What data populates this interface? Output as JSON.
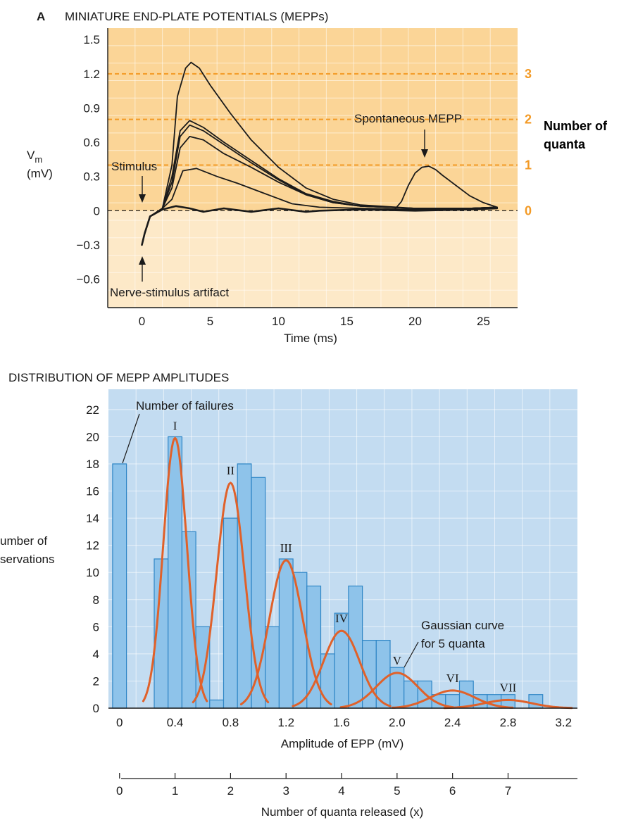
{
  "panel_a_label": "A",
  "colors": {
    "panel_a_bg_top": "#fbd597",
    "panel_a_bg_bottom": "#fde9c8",
    "quanta_orange": "#f39a25",
    "panel_b_bg": "#c3dcf1",
    "bar_fill": "#8ec3ea",
    "bar_stroke": "#2f86c6",
    "gaussian": "#e0612a",
    "trace": "#1a1a1a"
  },
  "chart_data": [
    {
      "id": "mepp_traces",
      "type": "line",
      "title": "MINIATURE END-PLATE POTENTIALS (MEPPs)",
      "xlabel": "Time (ms)",
      "ylabel": "V",
      "ylabel_subscript": "m",
      "ylabel_unit": "(mV)",
      "xlim": [
        -2.5,
        27.5
      ],
      "ylim": [
        -0.85,
        1.6
      ],
      "xticks": [
        0,
        5,
        10,
        15,
        20,
        25
      ],
      "yticks": [
        1.5,
        1.2,
        0.9,
        0.6,
        0.3,
        0,
        -0.3,
        -0.6
      ],
      "ytick_labels": [
        "1.5",
        "1.2",
        "0.9",
        "0.6",
        "0.3",
        "0",
        "−0.3",
        "−0.6"
      ],
      "quanta_axis": {
        "title_lines": [
          "Number of",
          "quanta"
        ],
        "levels": [
          {
            "label": "3",
            "mv": 1.2
          },
          {
            "label": "2",
            "mv": 0.8
          },
          {
            "label": "1",
            "mv": 0.4
          },
          {
            "label": "0",
            "mv": 0
          }
        ]
      },
      "annotations": {
        "stimulus": "Stimulus",
        "artifact": "Nerve-stimulus artifact",
        "spontaneous": "Spontaneous MEPP"
      },
      "series": [
        {
          "x": [
            0,
            0.2,
            0.6,
            1.5,
            2.5,
            3.5,
            4.5,
            6,
            8,
            10,
            12,
            13,
            16,
            20,
            24,
            26
          ],
          "y": [
            -0.3,
            -0.2,
            -0.05,
            0.01,
            0.04,
            0.02,
            -0.01,
            0.02,
            -0.01,
            0.02,
            -0.01,
            0.0,
            0.01,
            0.0,
            0.01,
            0.02
          ]
        },
        {
          "x": [
            0,
            0.2,
            0.6,
            1.5,
            2.2,
            3,
            4,
            5.5,
            7,
            9,
            11,
            13,
            16,
            20,
            24,
            26
          ],
          "y": [
            -0.3,
            -0.2,
            -0.05,
            0.02,
            0.1,
            0.35,
            0.37,
            0.3,
            0.24,
            0.15,
            0.06,
            0.03,
            0.02,
            0.01,
            0.02,
            0.03
          ]
        },
        {
          "x": [
            0,
            0.2,
            0.6,
            1.5,
            2.2,
            2.8,
            3.5,
            4.5,
            6,
            8,
            10,
            12,
            14,
            16,
            20,
            24,
            26
          ],
          "y": [
            -0.3,
            -0.2,
            -0.05,
            0.02,
            0.2,
            0.55,
            0.65,
            0.62,
            0.5,
            0.38,
            0.25,
            0.14,
            0.07,
            0.04,
            0.02,
            0.02,
            0.03
          ]
        },
        {
          "x": [
            0,
            0.2,
            0.6,
            1.5,
            2.2,
            2.8,
            3.5,
            4.5,
            6,
            8,
            10,
            12,
            14,
            16,
            20,
            24,
            26
          ],
          "y": [
            -0.3,
            -0.2,
            -0.05,
            0.02,
            0.25,
            0.65,
            0.75,
            0.7,
            0.58,
            0.42,
            0.27,
            0.14,
            0.07,
            0.04,
            0.02,
            0.02,
            0.03
          ]
        },
        {
          "x": [
            0,
            0.2,
            0.6,
            1.5,
            2.2,
            2.8,
            3.5,
            4.5,
            6,
            8,
            10,
            12,
            14,
            16,
            20,
            24,
            26
          ],
          "y": [
            -0.3,
            -0.2,
            -0.05,
            0.02,
            0.3,
            0.7,
            0.79,
            0.73,
            0.6,
            0.44,
            0.28,
            0.15,
            0.08,
            0.04,
            0.02,
            0.02,
            0.03
          ]
        },
        {
          "x": [
            0,
            0.2,
            0.6,
            1.5,
            2.2,
            2.6,
            3.2,
            3.6,
            4.2,
            5,
            6.5,
            8,
            10,
            12,
            14,
            16,
            20,
            24,
            26
          ],
          "y": [
            -0.3,
            -0.2,
            -0.05,
            0.02,
            0.4,
            1.0,
            1.25,
            1.3,
            1.25,
            1.1,
            0.85,
            0.62,
            0.38,
            0.2,
            0.1,
            0.05,
            0.02,
            0.02,
            0.03
          ]
        },
        {
          "x": [
            18.5,
            19,
            19.5,
            20,
            20.5,
            21,
            21.5,
            22,
            23,
            24,
            25,
            26
          ],
          "y": [
            0.01,
            0.08,
            0.22,
            0.33,
            0.38,
            0.39,
            0.36,
            0.31,
            0.22,
            0.13,
            0.07,
            0.03
          ]
        }
      ]
    },
    {
      "id": "mepp_distribution",
      "type": "bar",
      "title": "DISTRIBUTION OF MEPP AMPLITUDES",
      "xlabel": "Amplitude of EPP (mV)",
      "ylabel_lines": [
        "umber of",
        "servations"
      ],
      "xlim": [
        -0.08,
        3.3
      ],
      "ylim": [
        0,
        23.5
      ],
      "xticks": [
        0,
        0.4,
        0.8,
        1.2,
        1.6,
        2.0,
        2.4,
        2.8,
        3.2
      ],
      "xtick_labels": [
        "0",
        "0.4",
        "0.8",
        "1.2",
        "1.6",
        "2.0",
        "2.4",
        "2.8",
        "3.2"
      ],
      "yticks": [
        0,
        2,
        4,
        6,
        8,
        10,
        12,
        14,
        16,
        18,
        20,
        22
      ],
      "bin_width": 0.1,
      "bars": [
        {
          "x": 0.0,
          "value": 18
        },
        {
          "x": 0.3,
          "value": 11
        },
        {
          "x": 0.4,
          "value": 20
        },
        {
          "x": 0.5,
          "value": 13
        },
        {
          "x": 0.6,
          "value": 6
        },
        {
          "x": 0.7,
          "value": 0.6
        },
        {
          "x": 0.8,
          "value": 14
        },
        {
          "x": 0.9,
          "value": 18
        },
        {
          "x": 1.0,
          "value": 17
        },
        {
          "x": 1.1,
          "value": 6
        },
        {
          "x": 1.2,
          "value": 11
        },
        {
          "x": 1.3,
          "value": 10
        },
        {
          "x": 1.4,
          "value": 9
        },
        {
          "x": 1.5,
          "value": 4
        },
        {
          "x": 1.6,
          "value": 7
        },
        {
          "x": 1.7,
          "value": 9
        },
        {
          "x": 1.8,
          "value": 5
        },
        {
          "x": 1.9,
          "value": 5
        },
        {
          "x": 2.0,
          "value": 3
        },
        {
          "x": 2.1,
          "value": 2
        },
        {
          "x": 2.2,
          "value": 2
        },
        {
          "x": 2.3,
          "value": 1
        },
        {
          "x": 2.4,
          "value": 1
        },
        {
          "x": 2.5,
          "value": 2
        },
        {
          "x": 2.6,
          "value": 1
        },
        {
          "x": 2.7,
          "value": 1
        },
        {
          "x": 2.8,
          "value": 1
        },
        {
          "x": 3.0,
          "value": 1
        }
      ],
      "gaussians": [
        {
          "label": "I",
          "mean": 0.4,
          "sd": 0.085,
          "peak": 19.9
        },
        {
          "label": "II",
          "mean": 0.8,
          "sd": 0.1,
          "peak": 16.6
        },
        {
          "label": "III",
          "mean": 1.2,
          "sd": 0.12,
          "peak": 10.9
        },
        {
          "label": "IV",
          "mean": 1.6,
          "sd": 0.13,
          "peak": 5.7
        },
        {
          "label": "V",
          "mean": 2.0,
          "sd": 0.15,
          "peak": 2.6
        },
        {
          "label": "VI",
          "mean": 2.4,
          "sd": 0.16,
          "peak": 1.3
        },
        {
          "label": "VII",
          "mean": 2.8,
          "sd": 0.17,
          "peak": 0.6
        }
      ],
      "annotations": {
        "failures": "Number of failures",
        "gaussian_note_lines": [
          "Gaussian curve",
          "for 5 quanta"
        ]
      },
      "quanta_axis": {
        "title": "Number of quanta released (x)",
        "ticks": [
          0,
          1,
          2,
          3,
          4,
          5,
          6,
          7
        ]
      }
    }
  ]
}
